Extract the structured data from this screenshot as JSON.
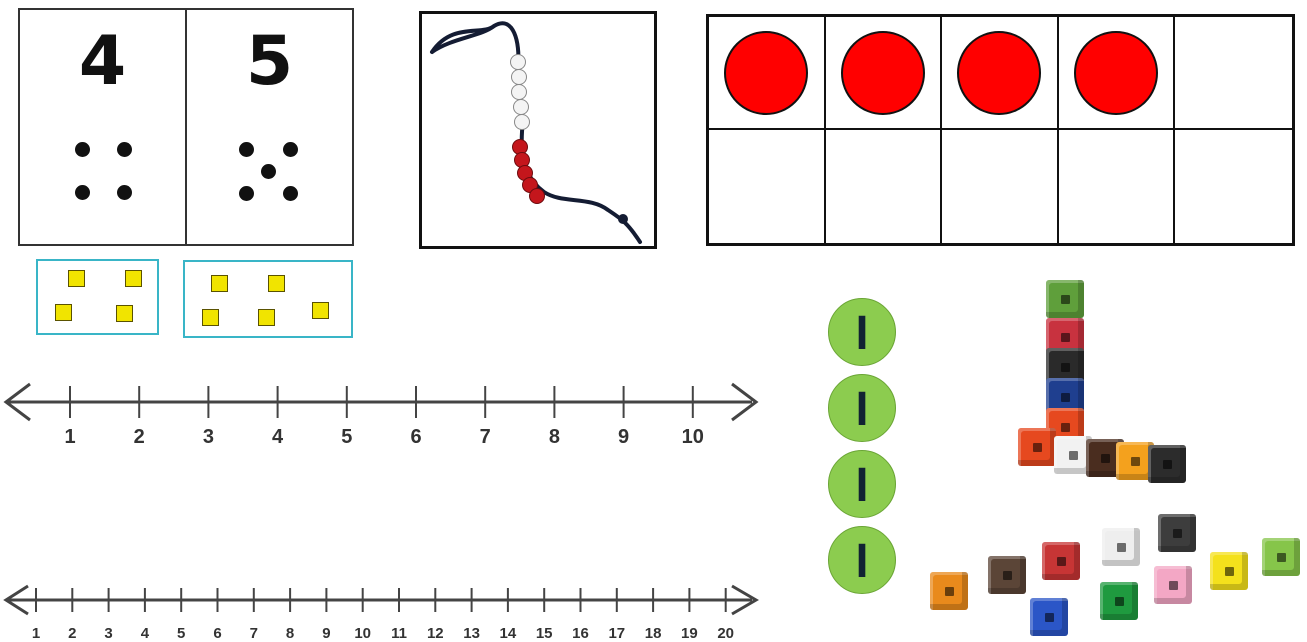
{
  "number_cards": [
    {
      "numeral": "4",
      "dots": 4
    },
    {
      "numeral": "5",
      "dots": 5
    }
  ],
  "square_groups": [
    {
      "count": 4
    },
    {
      "count": 5
    }
  ],
  "bead_string": {
    "white_beads": 5,
    "red_beads": 5
  },
  "ten_frame": {
    "cells": 10,
    "filled": 4,
    "counter_color": "#ff0000"
  },
  "number_line_10": {
    "labels": [
      "1",
      "2",
      "3",
      "4",
      "5",
      "6",
      "7",
      "8",
      "9",
      "10"
    ]
  },
  "number_line_20": {
    "labels": [
      "1",
      "2",
      "3",
      "4",
      "5",
      "6",
      "7",
      "8",
      "9",
      "10",
      "11",
      "12",
      "13",
      "14",
      "15",
      "16",
      "17",
      "18",
      "19",
      "20"
    ]
  },
  "ones_counters": {
    "label": "I",
    "count": 4,
    "color": "#8ccc4f"
  },
  "cube_colors": {
    "tower": [
      "#5f9f3b",
      "#c8323f",
      "#2a2a2a",
      "#1f3f8f",
      "#e6491f"
    ],
    "row": [
      "#f2f2f2",
      "#4a2d1f",
      "#f4a11d",
      "#2c2c2c"
    ],
    "loose": [
      "#e98a1c",
      "#5b4537",
      "#c73535",
      "#eeeeee",
      "#3d3d3d",
      "#2b56c7",
      "#1f9a3f",
      "#f3a7c5",
      "#f4e11c",
      "#86c54a"
    ]
  }
}
